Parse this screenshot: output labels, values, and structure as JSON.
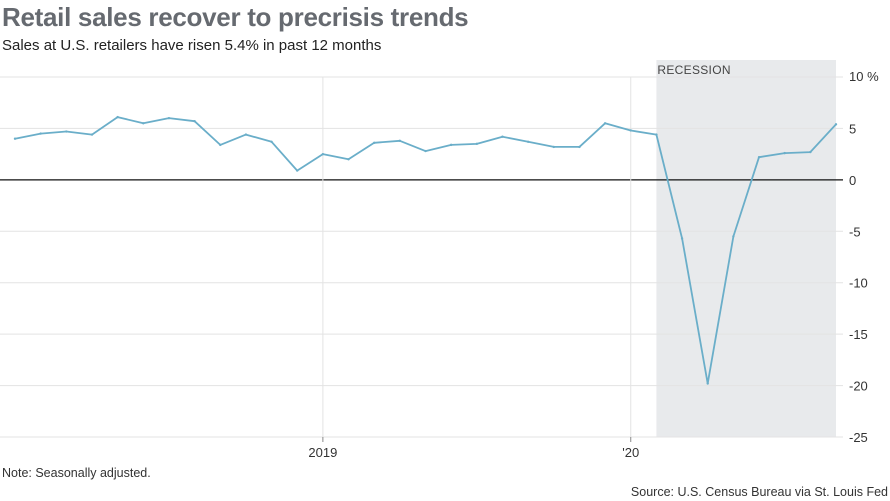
{
  "header": {
    "title": "Retail sales recover to precrisis trends",
    "subtitle": "Sales at U.S. retailers have risen 5.4% in past 12 months"
  },
  "footer": {
    "note": "Note: Seasonally adjusted.",
    "source": "Source: U.S. Census Bureau via St. Louis Fed"
  },
  "colors": {
    "line": "#6aaec9",
    "recession_fill": "#e8eaec",
    "grid": "#e3e3e3",
    "zero_line": "#111111",
    "tick_text": "#333333"
  },
  "chart_data": {
    "type": "line",
    "title": "Retail sales recover to precrisis trends",
    "subtitle": "Sales at U.S. retailers have risen 5.4% in past 12 months",
    "xlabel": "",
    "ylabel": "",
    "y_unit": "%",
    "ylim": [
      -25,
      10
    ],
    "y_ticks": [
      10,
      5,
      0,
      -5,
      -10,
      -15,
      -20,
      -25
    ],
    "x_range": [
      "2018-01",
      "2020-09"
    ],
    "x_ticks": [
      {
        "label": "2019",
        "date": "2019-01"
      },
      {
        "label": "'20",
        "date": "2020-01"
      }
    ],
    "grid": true,
    "shaded_regions": [
      {
        "label": "RECESSION",
        "start": "2020-02",
        "end": "2020-09"
      }
    ],
    "series": [
      {
        "x": [
          "2018-01",
          "2018-02",
          "2018-03",
          "2018-04",
          "2018-05",
          "2018-06",
          "2018-07",
          "2018-08",
          "2018-09",
          "2018-10",
          "2018-11",
          "2018-12",
          "2019-01",
          "2019-02",
          "2019-03",
          "2019-04",
          "2019-05",
          "2019-06",
          "2019-07",
          "2019-08",
          "2019-09",
          "2019-10",
          "2019-11",
          "2019-12",
          "2020-01",
          "2020-02",
          "2020-03",
          "2020-04",
          "2020-05",
          "2020-06",
          "2020-07",
          "2020-08",
          "2020-09"
        ],
        "values": [
          4.0,
          4.5,
          4.7,
          4.4,
          6.1,
          5.5,
          6.0,
          5.7,
          3.4,
          4.4,
          3.7,
          0.9,
          2.5,
          2.0,
          3.6,
          3.8,
          2.8,
          3.4,
          3.5,
          4.2,
          3.7,
          3.2,
          3.2,
          5.5,
          4.8,
          4.4,
          -5.7,
          -19.8,
          -5.5,
          2.2,
          2.6,
          2.7,
          5.4
        ]
      }
    ]
  }
}
